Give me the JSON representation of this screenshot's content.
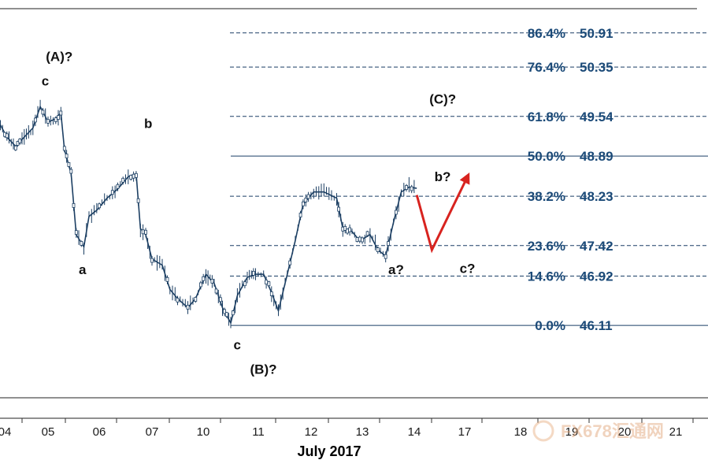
{
  "chart_data": {
    "type": "candlestick",
    "title": "",
    "month_label": "July 2017",
    "x_ticks": [
      "04",
      "05",
      "06",
      "07",
      "10",
      "11",
      "12",
      "13",
      "14",
      "17",
      "18",
      "19",
      "20",
      "21"
    ],
    "ylim": [
      44.6,
      51.45
    ],
    "fib_levels": [
      {
        "pct": "86.4%",
        "value": 50.91
      },
      {
        "pct": "76.4%",
        "value": 50.35
      },
      {
        "pct": "61.8%",
        "value": 49.54
      },
      {
        "pct": "50.0%",
        "value": 48.89
      },
      {
        "pct": "38.2%",
        "value": 48.23
      },
      {
        "pct": "23.6%",
        "value": 47.42
      },
      {
        "pct": "14.6%",
        "value": 46.92
      },
      {
        "pct": "0.0%",
        "value": 46.11
      }
    ],
    "wave_labels": [
      {
        "text": "(A)?",
        "x": 0.95,
        "y": 50.45
      },
      {
        "text": "c",
        "x": 0.85,
        "y": 50.05
      },
      {
        "text": "b",
        "x": 2.85,
        "y": 49.35
      },
      {
        "text": "a",
        "x": 1.6,
        "y": 46.95
      },
      {
        "text": "c",
        "x": 4.55,
        "y": 45.72
      },
      {
        "text": "(B)?",
        "x": 4.85,
        "y": 45.32
      },
      {
        "text": "(C)?",
        "x": 8.3,
        "y": 49.75
      },
      {
        "text": "b?",
        "x": 8.4,
        "y": 48.48
      },
      {
        "text": "a?",
        "x": 7.5,
        "y": 46.95
      },
      {
        "text": "c?",
        "x": 8.9,
        "y": 46.97
      }
    ],
    "projection": [
      {
        "x": 8.05,
        "y": 48.25
      },
      {
        "x": 8.35,
        "y": 47.35
      },
      {
        "x": 9.05,
        "y": 48.55
      }
    ],
    "price_path": [
      [
        -0.1,
        49.4
      ],
      [
        0.05,
        49.2
      ],
      [
        0.25,
        49.05
      ],
      [
        0.45,
        49.2
      ],
      [
        0.65,
        49.35
      ],
      [
        0.82,
        49.7
      ],
      [
        1.0,
        49.45
      ],
      [
        1.15,
        49.5
      ],
      [
        1.25,
        49.6
      ],
      [
        1.32,
        49.0
      ],
      [
        1.45,
        48.6
      ],
      [
        1.55,
        47.6
      ],
      [
        1.7,
        47.4
      ],
      [
        1.8,
        47.9
      ],
      [
        1.95,
        48.0
      ],
      [
        2.15,
        48.2
      ],
      [
        2.35,
        48.35
      ],
      [
        2.55,
        48.55
      ],
      [
        2.7,
        48.6
      ],
      [
        2.78,
        47.7
      ],
      [
        2.88,
        47.6
      ],
      [
        3.0,
        47.2
      ],
      [
        3.2,
        47.1
      ],
      [
        3.35,
        46.7
      ],
      [
        3.5,
        46.55
      ],
      [
        3.7,
        46.4
      ],
      [
        3.85,
        46.55
      ],
      [
        4.05,
        46.95
      ],
      [
        4.2,
        46.8
      ],
      [
        4.35,
        46.4
      ],
      [
        4.5,
        46.15
      ],
      [
        4.62,
        46.6
      ],
      [
        4.8,
        46.9
      ],
      [
        4.95,
        46.95
      ],
      [
        5.1,
        46.95
      ],
      [
        5.25,
        46.65
      ],
      [
        5.38,
        46.35
      ],
      [
        5.55,
        46.95
      ],
      [
        5.7,
        47.5
      ],
      [
        5.85,
        48.1
      ],
      [
        6.05,
        48.3
      ],
      [
        6.25,
        48.3
      ],
      [
        6.5,
        48.2
      ],
      [
        6.62,
        47.7
      ],
      [
        6.8,
        47.65
      ],
      [
        6.95,
        47.5
      ],
      [
        7.15,
        47.6
      ],
      [
        7.3,
        47.35
      ],
      [
        7.45,
        47.25
      ],
      [
        7.6,
        47.8
      ],
      [
        7.75,
        48.3
      ],
      [
        7.9,
        48.38
      ],
      [
        8.05,
        48.36
      ]
    ]
  }
}
